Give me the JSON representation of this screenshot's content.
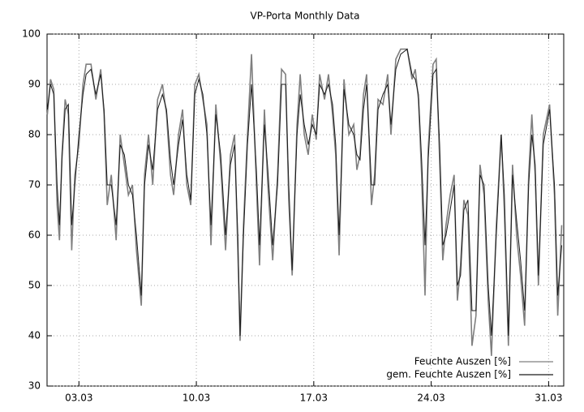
{
  "chart_data": {
    "type": "line",
    "title": "VP-Porta Monthly Data",
    "x": [
      1.12,
      1.31,
      1.5,
      1.7,
      1.84,
      1.99,
      2.18,
      2.37,
      2.57,
      2.76,
      3.0,
      3.24,
      3.43,
      3.72,
      4.01,
      4.3,
      4.5,
      4.69,
      4.93,
      5.22,
      5.46,
      5.71,
      5.95,
      6.19,
      6.43,
      6.72,
      6.91,
      7.15,
      7.4,
      7.69,
      7.98,
      8.22,
      8.46,
      8.65,
      8.94,
      9.18,
      9.43,
      9.67,
      9.91,
      10.15,
      10.39,
      10.63,
      10.87,
      11.16,
      11.45,
      11.74,
      12.03,
      12.28,
      12.47,
      12.61,
      12.81,
      13.05,
      13.29,
      13.58,
      13.77,
      14.06,
      14.26,
      14.55,
      14.84,
      15.08,
      15.32,
      15.51,
      15.71,
      16.0,
      16.19,
      16.43,
      16.67,
      16.91,
      17.15,
      17.35,
      17.64,
      17.88,
      18.12,
      18.31,
      18.51,
      18.8,
      19.09,
      19.38,
      19.57,
      19.76,
      19.96,
      20.15,
      20.44,
      20.63,
      20.83,
      21.12,
      21.41,
      21.6,
      21.89,
      22.18,
      22.57,
      22.86,
      23.05,
      23.24,
      23.43,
      23.63,
      23.82,
      24.11,
      24.3,
      24.5,
      24.69,
      24.88,
      25.13,
      25.37,
      25.56,
      25.75,
      25.95,
      26.19,
      26.43,
      26.67,
      26.91,
      27.15,
      27.4,
      27.59,
      27.88,
      28.17,
      28.36,
      28.6,
      28.85,
      29.09,
      29.33,
      29.57,
      29.81,
      30.0,
      30.2,
      30.39,
      30.68,
      31.06,
      31.35,
      31.54,
      31.78
    ],
    "series": [
      {
        "name": "Feuchte Auszen [%]",
        "color": "#7f7f7f",
        "values": [
          84,
          91,
          89,
          66,
          59,
          76,
          87,
          84,
          57,
          72,
          78,
          90,
          94,
          94,
          87,
          93,
          84,
          66,
          72,
          59,
          80,
          74,
          68,
          70,
          57,
          46,
          72,
          80,
          70,
          87,
          90,
          84,
          72,
          68,
          80,
          85,
          70,
          66,
          90,
          92,
          87,
          82,
          58,
          86,
          74,
          57,
          76,
          80,
          57,
          39,
          62,
          80,
          96,
          70,
          54,
          85,
          70,
          55,
          72,
          93,
          92,
          67,
          52,
          82,
          92,
          80,
          76,
          84,
          79,
          92,
          87,
          92,
          84,
          76,
          56,
          91,
          80,
          82,
          73,
          76,
          88,
          92,
          66,
          72,
          87,
          86,
          92,
          80,
          95,
          97,
          97,
          91,
          93,
          87,
          72,
          48,
          77,
          94,
          95,
          75,
          55,
          62,
          68,
          72,
          47,
          54,
          67,
          64,
          38,
          44,
          74,
          68,
          47,
          36,
          62,
          80,
          65,
          38,
          74,
          60,
          52,
          42,
          72,
          84,
          72,
          50,
          80,
          86,
          68,
          44,
          62
        ]
      },
      {
        "name": "gem. Feuchte Auszen [%]",
        "color": "#1a1a1a",
        "values": [
          85,
          90,
          88,
          70,
          62,
          75,
          85,
          86,
          62,
          70,
          80,
          88,
          92,
          93,
          88,
          92,
          85,
          70,
          70,
          62,
          78,
          76,
          70,
          68,
          60,
          48,
          70,
          78,
          73,
          85,
          88,
          85,
          75,
          70,
          78,
          83,
          72,
          67,
          88,
          91,
          88,
          80,
          62,
          84,
          76,
          60,
          74,
          78,
          60,
          40,
          60,
          78,
          90,
          73,
          58,
          82,
          73,
          58,
          70,
          90,
          90,
          70,
          53,
          80,
          88,
          82,
          78,
          82,
          80,
          90,
          88,
          90,
          86,
          78,
          60,
          89,
          82,
          80,
          76,
          75,
          85,
          90,
          70,
          70,
          85,
          88,
          90,
          82,
          93,
          96,
          97,
          92,
          91,
          88,
          75,
          58,
          75,
          92,
          93,
          78,
          58,
          60,
          65,
          70,
          50,
          52,
          65,
          67,
          45,
          45,
          72,
          70,
          50,
          40,
          60,
          80,
          68,
          40,
          72,
          63,
          55,
          45,
          70,
          80,
          74,
          52,
          78,
          85,
          70,
          48,
          58
        ]
      }
    ],
    "xlim": [
      1.1,
      31.9
    ],
    "xticks": [
      {
        "value": 3,
        "label": "03.03"
      },
      {
        "value": 10,
        "label": "10.03"
      },
      {
        "value": 17,
        "label": "17.03"
      },
      {
        "value": 24,
        "label": "24.03"
      },
      {
        "value": 31,
        "label": "31.03"
      }
    ],
    "ylim": [
      30,
      100
    ],
    "yticks": [
      30,
      40,
      50,
      60,
      70,
      80,
      90,
      100
    ],
    "grid": true,
    "legend": "bottom-right"
  }
}
